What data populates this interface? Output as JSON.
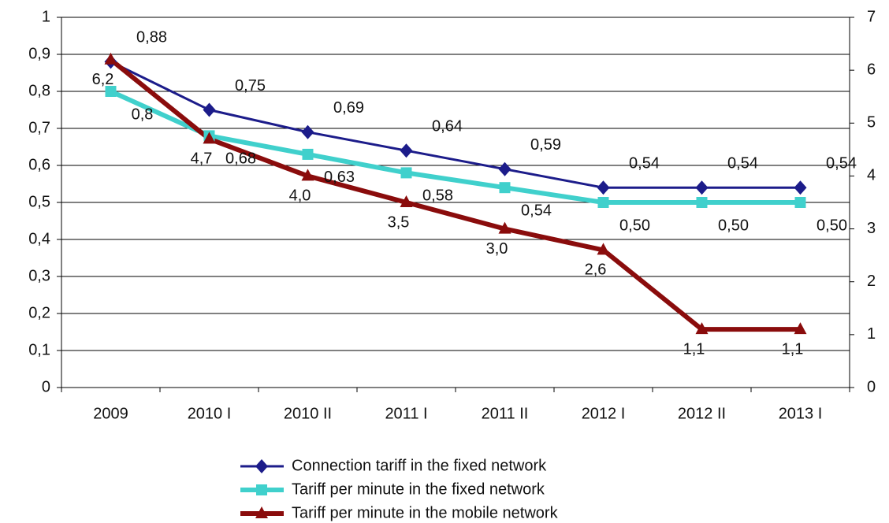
{
  "chart_data": {
    "type": "line",
    "categories": [
      "2009",
      "2010 I",
      "2010 II",
      "2011 I",
      "2011 II",
      "2012 I",
      "2012 II",
      "2013 I"
    ],
    "ylim": [
      0,
      1
    ],
    "yticks": [
      0,
      {
        "value": 0.1,
        "label": "0,1"
      },
      {
        "value": 0.2,
        "label": "0,2"
      },
      {
        "value": 0.3,
        "label": "0,3"
      },
      {
        "value": 0.4,
        "label": "0,4"
      },
      {
        "value": 0.5,
        "label": "0,5"
      },
      {
        "value": 0.6,
        "label": "0,6"
      },
      {
        "value": 0.7,
        "label": "0,7"
      },
      {
        "value": 0.8,
        "label": "0,8"
      },
      {
        "value": 0.9,
        "label": "0,9"
      },
      1
    ],
    "y2lim": [
      0,
      7
    ],
    "y2ticks": [
      0,
      1,
      2,
      3,
      4,
      5,
      6,
      7
    ],
    "grid": true,
    "legend": "bottom",
    "series": [
      {
        "name": "Connection tariff in the fixed network",
        "color": "#1c1c8a",
        "marker": "diamond",
        "values": [
          0.88,
          0.75,
          0.69,
          0.64,
          0.59,
          0.54,
          0.54,
          0.54
        ],
        "value_labels": [
          "0,88",
          "0,75",
          "0,69",
          "0,64",
          "0,59",
          "0,54",
          "0,54",
          "0,54"
        ]
      },
      {
        "name": "Tariff per minute in the fixed network",
        "color": "#40d0cc",
        "marker": "square",
        "values": [
          0.8,
          0.68,
          0.63,
          0.58,
          0.54,
          0.5,
          0.5,
          0.5
        ],
        "value_labels": [
          "0,8",
          "0,68",
          "0,63",
          "0,58",
          "0,54",
          "0,50",
          "0,50",
          "0,50"
        ]
      },
      {
        "name": "Tariff per minute in the mobile network",
        "color": "#8a0c0c",
        "marker": "triangle",
        "axis": "y2",
        "values": [
          6.2,
          4.7,
          4.0,
          3.5,
          3.0,
          2.6,
          1.1,
          1.1
        ],
        "value_labels": [
          "6,2",
          "4,7",
          "4,0",
          "3,5",
          "3,0",
          "2,6",
          "1,1",
          "1,1"
        ]
      }
    ]
  }
}
